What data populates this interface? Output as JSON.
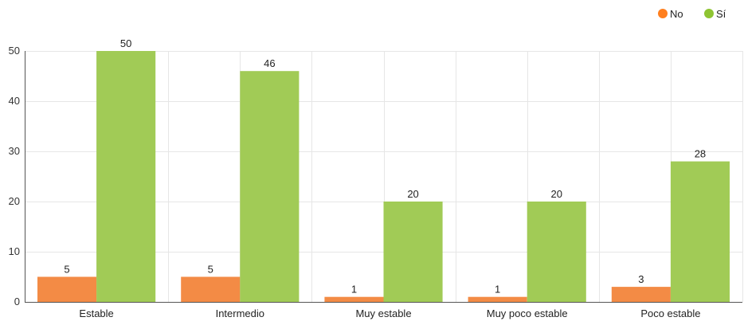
{
  "chart_data": {
    "type": "bar",
    "categories": [
      "Estable",
      "Intermedio",
      "Muy estable",
      "Muy poco estable",
      "Poco estable"
    ],
    "series": [
      {
        "name": "No",
        "color": "#f38b45",
        "values": [
          5,
          5,
          1,
          1,
          3
        ]
      },
      {
        "name": "Sí",
        "color": "#a1cb56",
        "values": [
          50,
          46,
          20,
          20,
          28
        ]
      }
    ],
    "ylim": [
      0,
      50
    ],
    "yticks": [
      0,
      10,
      20,
      30,
      40,
      50
    ],
    "grid": true,
    "legend_position": "top-right",
    "legend_marker_colors": [
      "#ff7f1e",
      "#8ec432"
    ],
    "data_labels": true,
    "title": "",
    "xlabel": "",
    "ylabel": ""
  }
}
